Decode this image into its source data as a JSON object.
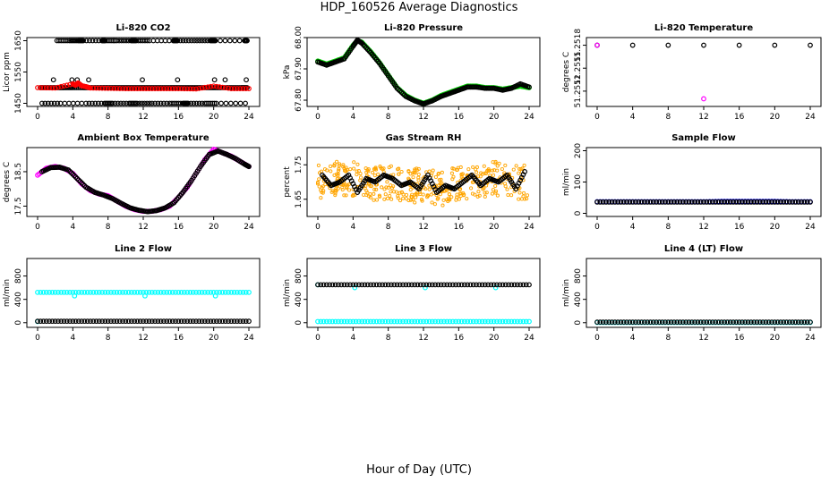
{
  "figure": {
    "title": "HDP_160526  Average Diagnostics",
    "xlabel": "Hour of Day (UTC)"
  },
  "colors": {
    "black": "#000000",
    "red": "#ff0000",
    "green": "#00cc00",
    "magenta": "#ff00ff",
    "orange": "#ffa500",
    "blue": "#0000cc",
    "cyan": "#00ffff"
  },
  "chart_data": [
    {
      "type": "scatter",
      "title": "Li-820 CO2",
      "ylabel": "Licor ppm",
      "xlim": [
        0,
        24
      ],
      "ylim": [
        1440,
        1660
      ],
      "xticks": [
        0,
        4,
        8,
        12,
        16,
        20,
        24
      ],
      "yticks": [
        1450,
        1550,
        1650
      ],
      "series": [
        {
          "color": "black",
          "x": [
            0.3,
            1.2,
            2.2,
            3.0,
            4.0,
            5.2,
            6.0,
            7.1,
            8.0,
            9.0,
            10.0,
            11.0,
            12.0,
            13.0,
            14.0,
            15.1,
            16.0,
            17.0,
            18.0,
            19.0,
            20.0,
            21.0,
            22.0,
            23.1,
            23.8
          ],
          "y": [
            1500,
            1500,
            1500,
            1500,
            1500,
            1500,
            1500,
            1500,
            1500,
            1500,
            1500,
            1500,
            1500,
            1500,
            1500,
            1500,
            1500,
            1500,
            1500,
            1500,
            1500,
            1500,
            1500,
            1500,
            1500
          ]
        },
        {
          "color": "black",
          "x": [
            2.2,
            3.6,
            4.6,
            5.2,
            7.3,
            7.7,
            9.0,
            10.6,
            11.2,
            12.7,
            15.4,
            15.9,
            17.8,
            19.6,
            20.2,
            23.5,
            23.8
          ],
          "y": [
            1650,
            1650,
            1650,
            1650,
            1650,
            1650,
            1650,
            1650,
            1650,
            1650,
            1650,
            1650,
            1650,
            1650,
            1650,
            1650,
            1650
          ]
        },
        {
          "color": "black",
          "x": [
            0.5,
            2.6,
            5.5,
            7.6,
            8.5,
            10.4,
            11.3,
            13.0,
            15.0,
            16.5,
            17.1,
            19.0,
            20.3,
            23.6
          ],
          "y": [
            1450,
            1450,
            1450,
            1450,
            1450,
            1450,
            1450,
            1450,
            1450,
            1450,
            1450,
            1450,
            1450,
            1450
          ]
        },
        {
          "color": "black",
          "x": [
            1.8,
            3.9,
            4.5,
            5.8,
            11.9,
            15.9,
            20.1,
            21.3,
            23.7
          ],
          "y": [
            1525,
            1525,
            1525,
            1525,
            1525,
            1525,
            1525,
            1525,
            1525
          ]
        },
        {
          "color": "red",
          "x": [
            0,
            2,
            4,
            4.3,
            4.6,
            5.0,
            5.5,
            6,
            8,
            10,
            12,
            14,
            16,
            18,
            20,
            22,
            24
          ],
          "y": [
            1500,
            1499,
            1512,
            1508,
            1515,
            1506,
            1503,
            1499,
            1498,
            1497,
            1497,
            1497,
            1497,
            1496,
            1505,
            1497,
            1497
          ]
        }
      ]
    },
    {
      "type": "scatter",
      "title": "Li-820 Pressure",
      "ylabel": "kPa",
      "xlim": [
        0,
        24
      ],
      "ylim": [
        67.78,
        68.0
      ],
      "xticks": [
        0,
        4,
        8,
        12,
        16,
        20,
        24
      ],
      "yticks": [
        67.8,
        67.9,
        68.0
      ],
      "ytick_labels": [
        "67.80",
        "67.90",
        "68.00"
      ],
      "series": [
        {
          "color": "green",
          "x": [
            0,
            1,
            2,
            3,
            4,
            4.5,
            5,
            6,
            7,
            8,
            9,
            10,
            11,
            12,
            13,
            14,
            15,
            16,
            17,
            18,
            19,
            20,
            21,
            22,
            23,
            24
          ],
          "y": [
            67.925,
            67.915,
            67.925,
            67.935,
            67.975,
            67.99,
            67.985,
            67.955,
            67.92,
            67.88,
            67.84,
            67.815,
            67.8,
            67.79,
            67.8,
            67.815,
            67.825,
            67.835,
            67.845,
            67.845,
            67.84,
            67.84,
            67.835,
            67.84,
            67.845,
            67.84
          ]
        },
        {
          "color": "black",
          "x": [
            0,
            1,
            2,
            3,
            4,
            4.5,
            5,
            6,
            7,
            8,
            9,
            10,
            11,
            12,
            13,
            14,
            15,
            16,
            17,
            18,
            19,
            20,
            21,
            22,
            23,
            24
          ],
          "y": [
            67.922,
            67.912,
            67.922,
            67.932,
            67.972,
            67.992,
            67.982,
            67.952,
            67.918,
            67.878,
            67.838,
            67.812,
            67.798,
            67.788,
            67.798,
            67.812,
            67.822,
            67.832,
            67.842,
            67.842,
            67.838,
            67.838,
            67.832,
            67.838,
            67.852,
            67.842
          ]
        }
      ]
    },
    {
      "type": "scatter",
      "title": "Li-820 Temperature",
      "ylabel": "degrees C",
      "xlim": [
        0,
        24
      ],
      "ylim": [
        51.251,
        51.2519
      ],
      "xticks": [
        0,
        4,
        8,
        12,
        16,
        20,
        24
      ],
      "yticks": [
        51.2512,
        51.2515,
        51.2518
      ],
      "ytick_labels": [
        "51.2512",
        "51.2515",
        "51.2518"
      ],
      "series": [
        {
          "color": "black",
          "x": [
            0,
            4,
            8,
            12,
            16,
            20,
            24
          ],
          "y": [
            51.2518,
            51.2518,
            51.2518,
            51.2518,
            51.2518,
            51.2518,
            51.2518
          ]
        },
        {
          "color": "magenta",
          "x": [
            0,
            12
          ],
          "y": [
            51.2518,
            51.2511
          ]
        }
      ]
    },
    {
      "type": "scatter",
      "title": "Ambient Box Temperature",
      "ylabel": "degrees C",
      "xlim": [
        0,
        24
      ],
      "ylim": [
        17.2,
        19.2
      ],
      "xticks": [
        0,
        4,
        8,
        12,
        16,
        20,
        24
      ],
      "yticks": [
        17.5,
        18.5
      ],
      "series": [
        {
          "color": "magenta",
          "x": [
            0,
            1,
            2,
            3,
            4,
            5,
            6,
            7,
            8,
            9,
            10,
            11,
            12,
            13,
            14,
            15,
            16,
            17,
            18,
            19,
            20,
            21,
            22,
            23,
            24
          ],
          "y": [
            18.4,
            18.6,
            18.65,
            18.6,
            18.45,
            18.15,
            17.95,
            17.85,
            17.8,
            17.65,
            17.5,
            17.4,
            17.35,
            17.35,
            17.4,
            17.5,
            17.75,
            18.05,
            18.45,
            18.85,
            19.15,
            19.05,
            18.95,
            18.8,
            18.65
          ]
        },
        {
          "color": "black",
          "x": [
            0.5,
            1.5,
            2.5,
            3.5,
            4.5,
            5.5,
            6.5,
            7.5,
            8.5,
            9.5,
            10.5,
            11.5,
            12.5,
            13.5,
            14.5,
            15.5,
            16.5,
            17.5,
            18.5,
            19.5,
            20.5,
            21.5,
            22.5,
            23.5,
            24
          ],
          "y": [
            18.5,
            18.62,
            18.63,
            18.55,
            18.3,
            18.05,
            17.9,
            17.82,
            17.72,
            17.58,
            17.45,
            17.38,
            17.34,
            17.37,
            17.45,
            17.6,
            17.9,
            18.25,
            18.65,
            19.0,
            19.1,
            19.0,
            18.88,
            18.72,
            18.65
          ]
        }
      ]
    },
    {
      "type": "scatter",
      "title": "Gas Stream RH",
      "ylabel": "percent",
      "xlim": [
        0,
        24
      ],
      "ylim": [
        1.6,
        1.8
      ],
      "xticks": [
        0,
        4,
        8,
        12,
        16,
        20,
        24
      ],
      "yticks": [
        1.65,
        1.75
      ],
      "series": [
        {
          "color": "orange",
          "x": [
            0,
            2,
            4,
            6,
            8,
            10,
            12,
            14,
            16,
            18,
            20,
            22,
            24
          ],
          "y": [
            1.7,
            1.71,
            1.71,
            1.69,
            1.7,
            1.69,
            1.69,
            1.68,
            1.7,
            1.7,
            1.71,
            1.7,
            1.7
          ],
          "spread": 0.05
        },
        {
          "color": "black",
          "x": [
            0.5,
            1.5,
            2.5,
            3.5,
            4.5,
            5.5,
            6.5,
            7.5,
            8.5,
            9.5,
            10.5,
            11.5,
            12.5,
            13.5,
            14.5,
            15.5,
            16.5,
            17.5,
            18.5,
            19.5,
            20.5,
            21.5,
            22.5,
            23.5
          ],
          "y": [
            1.72,
            1.69,
            1.7,
            1.72,
            1.67,
            1.71,
            1.7,
            1.72,
            1.71,
            1.69,
            1.7,
            1.68,
            1.72,
            1.67,
            1.69,
            1.68,
            1.7,
            1.72,
            1.69,
            1.71,
            1.7,
            1.72,
            1.68,
            1.73
          ]
        }
      ]
    },
    {
      "type": "scatter",
      "title": "Sample Flow",
      "ylabel": "ml/min",
      "xlim": [
        0,
        24
      ],
      "ylim": [
        -10,
        210
      ],
      "xticks": [
        0,
        4,
        8,
        12,
        16,
        20,
        24
      ],
      "yticks": [
        0,
        100,
        200
      ],
      "series": [
        {
          "color": "blue",
          "x": [
            0,
            2,
            4,
            6,
            8,
            10,
            12,
            14,
            16,
            18,
            20,
            22,
            24
          ],
          "y": [
            37,
            37,
            37,
            37,
            37,
            37,
            37,
            38,
            38,
            38,
            38,
            37,
            37
          ]
        },
        {
          "color": "black",
          "x": [
            0,
            2,
            4,
            6,
            8,
            10,
            12,
            14,
            16,
            18,
            20,
            22,
            24
          ],
          "y": [
            36,
            36,
            36,
            36,
            36,
            36,
            36,
            36,
            36,
            36,
            36,
            36,
            36
          ]
        }
      ]
    },
    {
      "type": "scatter",
      "title": "Line 2 Flow",
      "ylabel": "ml/min",
      "xlim": [
        0,
        24
      ],
      "ylim": [
        -80,
        1100
      ],
      "xticks": [
        0,
        4,
        8,
        12,
        16,
        20,
        24
      ],
      "yticks": [
        0,
        400,
        800
      ],
      "series": [
        {
          "color": "cyan",
          "x": [
            0,
            2,
            4,
            6,
            8,
            10,
            12,
            14,
            16,
            18,
            20,
            22,
            24
          ],
          "y": [
            520,
            520,
            520,
            520,
            520,
            520,
            520,
            520,
            520,
            520,
            520,
            520,
            520
          ]
        },
        {
          "color": "cyan",
          "x": [
            0,
            4.2,
            12.2,
            20.2
          ],
          "y": [
            20,
            460,
            460,
            460
          ]
        },
        {
          "color": "black",
          "x": [
            0,
            2,
            4,
            6,
            8,
            10,
            12,
            14,
            16,
            18,
            20,
            22,
            24
          ],
          "y": [
            25,
            25,
            25,
            25,
            25,
            25,
            25,
            25,
            25,
            25,
            25,
            25,
            25
          ]
        }
      ]
    },
    {
      "type": "scatter",
      "title": "Line 3 Flow",
      "ylabel": "ml/min",
      "xlim": [
        0,
        24
      ],
      "ylim": [
        -80,
        1100
      ],
      "xticks": [
        0,
        4,
        8,
        12,
        16,
        20,
        24
      ],
      "yticks": [
        0,
        400,
        800
      ],
      "series": [
        {
          "color": "cyan",
          "x": [
            0,
            2,
            4,
            6,
            8,
            10,
            12,
            14,
            16,
            18,
            20,
            22,
            24
          ],
          "y": [
            20,
            20,
            20,
            20,
            20,
            20,
            20,
            20,
            20,
            20,
            20,
            20,
            20
          ]
        },
        {
          "color": "cyan",
          "x": [
            0,
            4.2,
            12.2,
            20.2
          ],
          "y": [
            650,
            600,
            600,
            600
          ]
        },
        {
          "color": "black",
          "x": [
            0,
            2,
            4,
            6,
            8,
            10,
            12,
            14,
            16,
            18,
            20,
            22,
            24
          ],
          "y": [
            650,
            650,
            650,
            650,
            650,
            650,
            650,
            650,
            650,
            650,
            650,
            650,
            650
          ]
        }
      ]
    },
    {
      "type": "scatter",
      "title": "Line 4 (LT) Flow",
      "ylabel": "ml/min",
      "xlim": [
        0,
        24
      ],
      "ylim": [
        -80,
        1100
      ],
      "xticks": [
        0,
        4,
        8,
        12,
        16,
        20,
        24
      ],
      "yticks": [
        0,
        400,
        800
      ],
      "series": [
        {
          "color": "cyan",
          "x": [
            0,
            2,
            4,
            6,
            8,
            10,
            12,
            14,
            16,
            18,
            20,
            22,
            24
          ],
          "y": [
            5,
            5,
            5,
            5,
            5,
            5,
            5,
            5,
            5,
            5,
            5,
            5,
            5
          ]
        },
        {
          "color": "black",
          "x": [
            0,
            2,
            4,
            6,
            8,
            10,
            12,
            14,
            16,
            18,
            20,
            22,
            24
          ],
          "y": [
            10,
            10,
            10,
            10,
            10,
            10,
            10,
            10,
            10,
            10,
            10,
            10,
            10
          ]
        }
      ]
    }
  ]
}
